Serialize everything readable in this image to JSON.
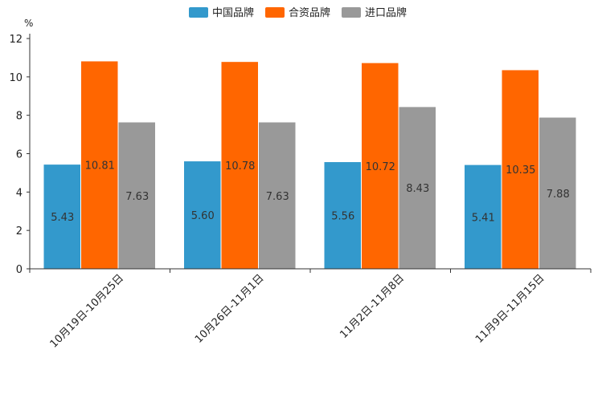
{
  "chart_data": {
    "type": "bar",
    "title": "",
    "xlabel": "",
    "ylabel": "%",
    "ylim": [
      0,
      12
    ],
    "yticks": [
      0,
      2,
      4,
      6,
      8,
      10,
      12
    ],
    "grid": false,
    "legend_position": "top",
    "categories": [
      "10月19日-10月25日",
      "10月26日-11月1日",
      "11月2日-11月8日",
      "11月9日-11月15日"
    ],
    "series": [
      {
        "name": "中国品牌",
        "color": "#3399CC",
        "values": [
          5.43,
          5.6,
          5.56,
          5.41
        ],
        "labels": [
          "5.43",
          "5.60",
          "5.56",
          "5.41"
        ]
      },
      {
        "name": "合资品牌",
        "color": "#FF6600",
        "values": [
          10.81,
          10.78,
          10.72,
          10.35
        ],
        "labels": [
          "10.81",
          "10.78",
          "10.72",
          "10.35"
        ]
      },
      {
        "name": "进口品牌",
        "color": "#999999",
        "values": [
          7.63,
          7.63,
          8.43,
          7.88
        ],
        "labels": [
          "7.63",
          "7.63",
          "8.43",
          "7.88"
        ]
      }
    ]
  }
}
